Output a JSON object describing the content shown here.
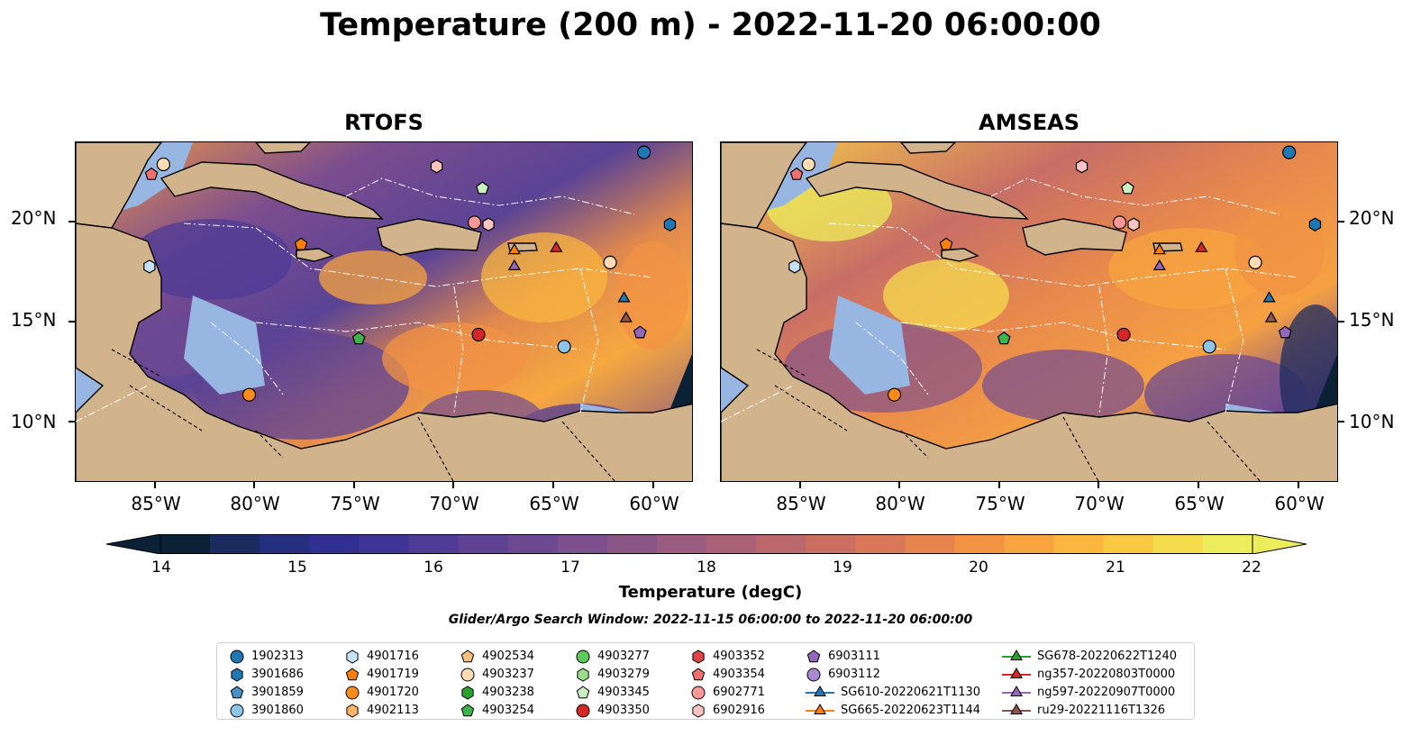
{
  "title": "Temperature (200 m) - 2022-11-20 06:00:00",
  "panels": [
    {
      "title": "RTOFS"
    },
    {
      "title": "AMSEAS"
    }
  ],
  "map_extent": {
    "lon": [
      -89,
      -58
    ],
    "lat": [
      7,
      24
    ]
  },
  "lat_ticks": [
    {
      "value": 10,
      "label": "10°N"
    },
    {
      "value": 15,
      "label": "15°N"
    },
    {
      "value": 20,
      "label": "20°N"
    }
  ],
  "lon_ticks": [
    {
      "value": -85,
      "label": "85°W"
    },
    {
      "value": -80,
      "label": "80°W"
    },
    {
      "value": -75,
      "label": "75°W"
    },
    {
      "value": -70,
      "label": "70°W"
    },
    {
      "value": -65,
      "label": "65°W"
    },
    {
      "value": -60,
      "label": "60°W"
    }
  ],
  "colorbar": {
    "label": "Temperature (degC)",
    "min": 14,
    "max": 22,
    "ticks": [
      "14",
      "15",
      "16",
      "17",
      "18",
      "19",
      "20",
      "21",
      "22"
    ],
    "colors": [
      "#0b2236",
      "#1c2b5e",
      "#262f7e",
      "#322f93",
      "#3f3597",
      "#4e3b96",
      "#5e4394",
      "#6c4a91",
      "#7b508c",
      "#8a5686",
      "#9a5c7f",
      "#aa6277",
      "#ba686c",
      "#ca6f62",
      "#d97859",
      "#e6844e",
      "#f29344",
      "#f7a43f",
      "#fab63f",
      "#f9c944",
      "#f5dc4d",
      "#eced5c"
    ],
    "extend": "both"
  },
  "search_window": "Glider/Argo Search Window: 2022-11-15 06:00:00 to 2022-11-20 06:00:00",
  "colors": {
    "land": "#d2b48c",
    "shallow": "#98b6e2",
    "deep_edge": "#0b2236"
  },
  "legend_items": [
    {
      "label": "1902313",
      "marker": "circle",
      "color": "#1f77b4"
    },
    {
      "label": "3901686",
      "marker": "hexagon",
      "color": "#1f77b4"
    },
    {
      "label": "3901859",
      "marker": "pentagon",
      "color": "#4a90c8"
    },
    {
      "label": "3901860",
      "marker": "circle",
      "color": "#8fc3ea"
    },
    {
      "label": "4901716",
      "marker": "hexagon",
      "color": "#c6e0f5"
    },
    {
      "label": "4901719",
      "marker": "pentagon",
      "color": "#ff7f0e"
    },
    {
      "label": "4901720",
      "marker": "circle",
      "color": "#ff8c1a"
    },
    {
      "label": "4902113",
      "marker": "hexagon",
      "color": "#ffb366"
    },
    {
      "label": "4902534",
      "marker": "pentagon",
      "color": "#ffc080"
    },
    {
      "label": "4903237",
      "marker": "circle",
      "color": "#ffdcb3"
    },
    {
      "label": "4903238",
      "marker": "hexagon",
      "color": "#2ca02c"
    },
    {
      "label": "4903254",
      "marker": "pentagon",
      "color": "#3cb44b"
    },
    {
      "label": "4903277",
      "marker": "circle",
      "color": "#5cc95c"
    },
    {
      "label": "4903279",
      "marker": "hexagon",
      "color": "#98df8a"
    },
    {
      "label": "4903345",
      "marker": "pentagon",
      "color": "#c8f0c0"
    },
    {
      "label": "4903350",
      "marker": "circle",
      "color": "#d62728"
    },
    {
      "label": "4903352",
      "marker": "hexagon",
      "color": "#e04444"
    },
    {
      "label": "4903354",
      "marker": "pentagon",
      "color": "#f07070"
    },
    {
      "label": "6902771",
      "marker": "circle",
      "color": "#ff9896"
    },
    {
      "label": "6902916",
      "marker": "hexagon",
      "color": "#ffc4c2"
    },
    {
      "label": "6903111",
      "marker": "pentagon",
      "color": "#9467bd"
    },
    {
      "label": "6903112",
      "marker": "circle",
      "color": "#a98ad0"
    },
    {
      "label": "SG610-20220621T1130",
      "marker": "triangle-line",
      "color": "#1f77b4"
    },
    {
      "label": "SG665-20220623T1144",
      "marker": "triangle-line",
      "color": "#ff7f0e"
    },
    {
      "label": "SG678-20220622T1240",
      "marker": "triangle-line",
      "color": "#2ca02c"
    },
    {
      "label": "ng357-20220803T0000",
      "marker": "triangle-line",
      "color": "#d62728"
    },
    {
      "label": "ng597-20220907T0000",
      "marker": "triangle-line",
      "color": "#9467bd"
    },
    {
      "label": "ru29-20221116T1326",
      "marker": "triangle-line",
      "color": "#8c564b"
    }
  ],
  "platforms": [
    {
      "id": "1902313",
      "lon": -60.5,
      "lat": 23.5
    },
    {
      "id": "3901686",
      "lon": -59.2,
      "lat": 19.9
    },
    {
      "id": "3901860",
      "lon": -64.5,
      "lat": 13.8
    },
    {
      "id": "4901716",
      "lon": -85.3,
      "lat": 17.8
    },
    {
      "id": "4901719",
      "lon": -77.7,
      "lat": 18.9
    },
    {
      "id": "4901720",
      "lon": -80.3,
      "lat": 11.4
    },
    {
      "id": "4903237",
      "lon": -84.6,
      "lat": 22.9
    },
    {
      "id": "4903254",
      "lon": -74.8,
      "lat": 14.2
    },
    {
      "id": "4903345",
      "lon": -68.6,
      "lat": 21.7
    },
    {
      "id": "4903350",
      "lon": -68.8,
      "lat": 14.4
    },
    {
      "id": "4903354",
      "lon": -85.2,
      "lat": 22.4
    },
    {
      "id": "6902771",
      "lon": -69.0,
      "lat": 20.0
    },
    {
      "id": "6902916",
      "lon": -68.3,
      "lat": 19.9
    },
    {
      "id": "6902916b",
      "lon": -70.9,
      "lat": 22.8
    },
    {
      "id": "6903111",
      "lon": -60.7,
      "lat": 14.5
    },
    {
      "id": "4903237b",
      "lon": -62.2,
      "lat": 18.0
    },
    {
      "id": "SG665-20220623T1144",
      "lon": -67.0,
      "lat": 18.6
    },
    {
      "id": "ng357-20220803T0000",
      "lon": -64.9,
      "lat": 18.7
    },
    {
      "id": "ng597-20220907T0000",
      "lon": -67.0,
      "lat": 17.8
    },
    {
      "id": "SG610-20220621T1130",
      "lon": -61.5,
      "lat": 16.2
    },
    {
      "id": "ru29-20221116T1326",
      "lon": -61.4,
      "lat": 15.2
    }
  ]
}
